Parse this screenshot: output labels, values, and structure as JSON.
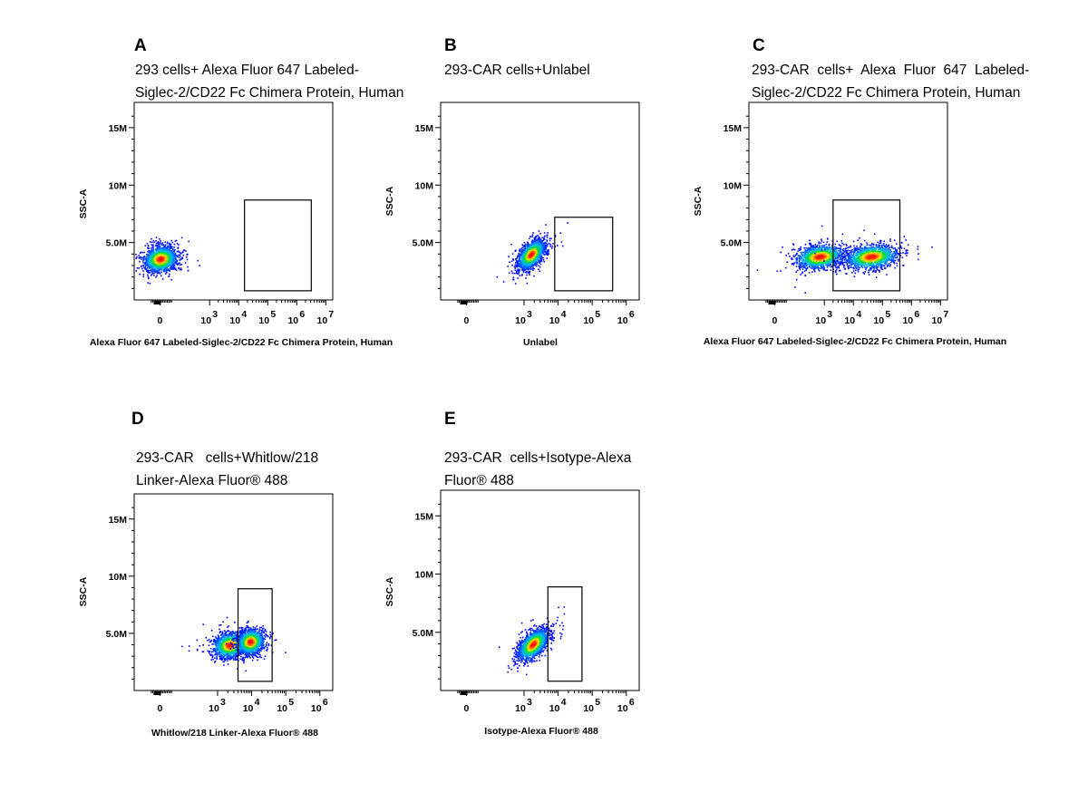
{
  "chart_data": [
    {
      "type": "scatter",
      "panel_letter": "A",
      "title_lines": [
        "293 cells+ Alexa Fluor 647 Labeled-",
        "Siglec-2/CD22 Fc Chimera Protein, Human"
      ],
      "xlabel": "Alexa Fluor 647 Labeled-Siglec-2/CD22 Fc Chimera Protein, Human",
      "ylabel": "SSC-A",
      "y_ticks": [
        "5.0M",
        "10M",
        "15M"
      ],
      "x_ticks": [
        "0",
        "10",
        "10",
        "10",
        "10",
        "10"
      ],
      "x_tick_exponents": [
        "",
        "3",
        "4",
        "5",
        "6",
        "7"
      ],
      "x_scale": "biexponential",
      "populations": [
        {
          "x_center": 0,
          "y_center": 3.6,
          "x_spread": 0.45,
          "y_spread": 1.0
        }
      ],
      "gate": {
        "x_range": [
          4.2,
          6.5
        ],
        "y_range": [
          0.8,
          8.7
        ]
      }
    },
    {
      "type": "scatter",
      "panel_letter": "B",
      "title_lines": [
        "293-CAR cells+Unlabel"
      ],
      "xlabel": "Unlabel",
      "ylabel": "SSC-A",
      "y_ticks": [
        "5.0M",
        "10M",
        "15M"
      ],
      "x_ticks": [
        "0",
        "10",
        "10",
        "10",
        "10"
      ],
      "x_tick_exponents": [
        "",
        "3",
        "4",
        "5",
        "6"
      ],
      "x_scale": "biexponential",
      "populations": [
        {
          "x_center": 3.2,
          "y_center": 4.0,
          "x_spread": 0.18,
          "y_spread": 1.0
        }
      ],
      "gate": {
        "x_range": [
          3.9,
          5.6
        ],
        "y_range": [
          0.8,
          7.2
        ]
      }
    },
    {
      "type": "scatter",
      "panel_letter": "C",
      "title_lines": [
        "293-CAR  cells+  Alexa  Fluor  647  Labeled-",
        "Siglec-2/CD22 Fc Chimera Protein, Human"
      ],
      "xlabel": "Alexa Fluor 647 Labeled-Siglec-2/CD22 Fc Chimera Protein, Human",
      "ylabel": "SSC-A",
      "y_ticks": [
        "5.0M",
        "10M",
        "15M"
      ],
      "x_ticks": [
        "0",
        "10",
        "10",
        "10",
        "10",
        "10"
      ],
      "x_tick_exponents": [
        "",
        "3",
        "4",
        "5",
        "6",
        "7"
      ],
      "x_scale": "biexponential",
      "populations": [
        {
          "x_center": 2.7,
          "y_center": 3.8,
          "x_spread": 0.5,
          "y_spread": 0.9
        },
        {
          "x_center": 4.6,
          "y_center": 3.8,
          "x_spread": 0.4,
          "y_spread": 0.9
        }
      ],
      "gate": {
        "x_range": [
          3.3,
          5.6
        ],
        "y_range": [
          0.8,
          8.7
        ]
      }
    },
    {
      "type": "scatter",
      "panel_letter": "D",
      "title_lines": [
        "293-CAR   cells+Whitlow/218",
        "Linker-Alexa Fluor® 488"
      ],
      "xlabel": "Whitlow/218 Linker-Alexa Fluor® 488",
      "ylabel": "SSC-A",
      "y_ticks": [
        "5.0M",
        "10M",
        "15M"
      ],
      "x_ticks": [
        "0",
        "10",
        "10",
        "10",
        "10"
      ],
      "x_tick_exponents": [
        "",
        "3",
        "4",
        "5",
        "6"
      ],
      "x_scale": "biexponential",
      "populations": [
        {
          "x_center": 3.35,
          "y_center": 4.0,
          "x_spread": 0.22,
          "y_spread": 1.0
        },
        {
          "x_center": 3.95,
          "y_center": 4.3,
          "x_spread": 0.18,
          "y_spread": 1.0
        }
      ],
      "gate": {
        "x_range": [
          3.6,
          4.6
        ],
        "y_range": [
          0.8,
          8.9
        ]
      }
    },
    {
      "type": "scatter",
      "panel_letter": "E",
      "title_lines": [
        "293-CAR  cells+Isotype-Alexa",
        "Fluor® 488"
      ],
      "xlabel": "Isotype-Alexa Fluor® 488",
      "ylabel": "SSC-A",
      "y_ticks": [
        "5.0M",
        "10M",
        "15M"
      ],
      "x_ticks": [
        "0",
        "10",
        "10",
        "10",
        "10"
      ],
      "x_tick_exponents": [
        "",
        "3",
        "4",
        "5",
        "6"
      ],
      "x_scale": "biexponential",
      "populations": [
        {
          "x_center": 3.25,
          "y_center": 4.0,
          "x_spread": 0.2,
          "y_spread": 1.0
        }
      ],
      "gate": {
        "x_range": [
          3.7,
          4.7
        ],
        "y_range": [
          0.8,
          8.9
        ]
      }
    }
  ],
  "colors": {
    "density_low": "#0000ff",
    "density_mid": "#00ff00",
    "density_high": "#ff0000",
    "gate_stroke": "#000000",
    "frame_stroke": "#000000"
  }
}
